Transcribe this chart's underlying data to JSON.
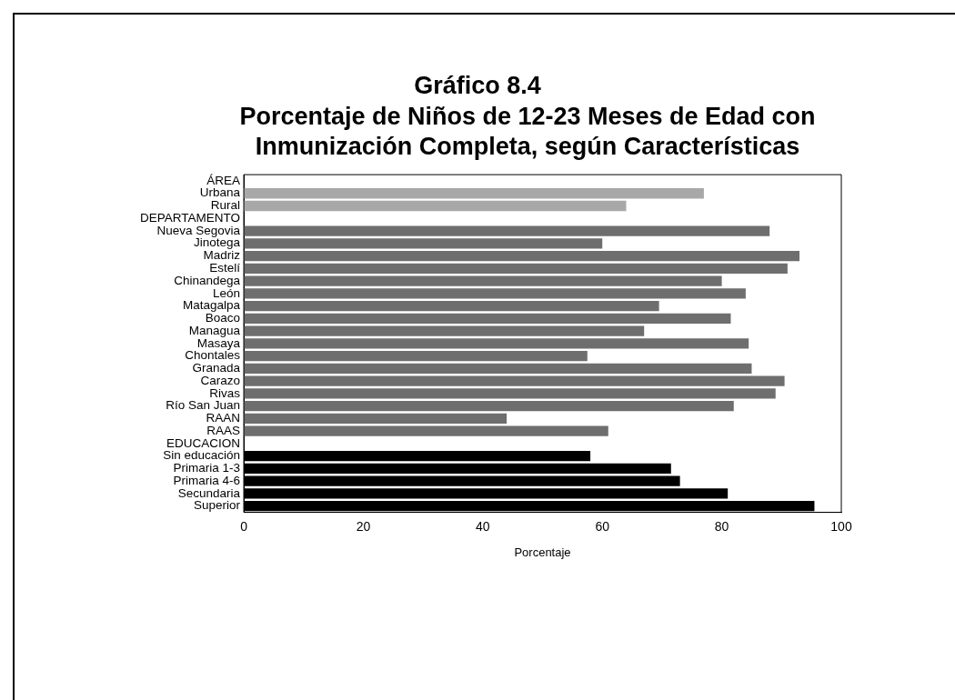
{
  "chart_data": {
    "type": "bar",
    "orientation": "horizontal",
    "title": "Gráfico 8.4",
    "subtitle": "Porcentaje de Niños de 12-23 Meses de Edad con Inmunización Completa, según Características",
    "xlabel": "Porcentaje",
    "categories": [
      "ÁREA",
      "Urbana",
      "Rural",
      "DEPARTAMENTO",
      "Nueva Segovia",
      "Jinotega",
      "Madriz",
      "Estelí",
      "Chinandega",
      "León",
      "Matagalpa",
      "Boaco",
      "Managua",
      "Masaya",
      "Chontales",
      "Granada",
      "Carazo",
      "Rivas",
      "Río San Juan",
      "RAAN",
      "RAAS",
      "EDUCACION",
      "Sin educación",
      "Primaria 1-3",
      "Primaria 4-6",
      "Secundaria",
      "Superior"
    ],
    "values": [
      null,
      77,
      64,
      null,
      88,
      60,
      93,
      91,
      80,
      84,
      69.5,
      81.5,
      67,
      84.5,
      57.5,
      85,
      90.5,
      89,
      82,
      44,
      61,
      null,
      58,
      71.5,
      73,
      81,
      95.5
    ],
    "colors": [
      "#a8a8a8",
      "#a8a8a8",
      "#a8a8a8",
      "#6e6e6e",
      "#6e6e6e",
      "#6e6e6e",
      "#6e6e6e",
      "#6e6e6e",
      "#6e6e6e",
      "#6e6e6e",
      "#6e6e6e",
      "#6e6e6e",
      "#6e6e6e",
      "#6e6e6e",
      "#6e6e6e",
      "#6e6e6e",
      "#6e6e6e",
      "#6e6e6e",
      "#6e6e6e",
      "#6e6e6e",
      "#6e6e6e",
      "#000000",
      "#000000",
      "#000000",
      "#000000",
      "#000000",
      "#000000"
    ],
    "xlim": [
      0,
      100
    ],
    "xticks": [
      0,
      20,
      40,
      60,
      80,
      100
    ],
    "grid": false,
    "legend": false
  }
}
